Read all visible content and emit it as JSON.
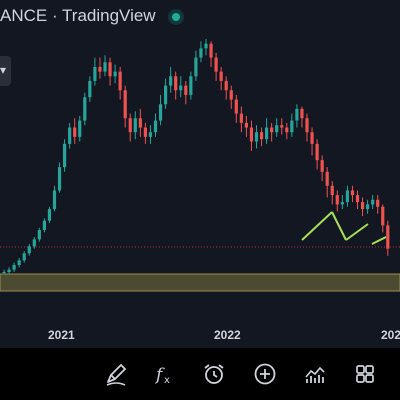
{
  "header": {
    "title": "ANCE · TradingView",
    "side_tab_glyph": "▾"
  },
  "colors": {
    "up": "#26a69a",
    "down": "#ef5350",
    "zone_fill": "#4d4a32",
    "zone_border": "#9a8f52",
    "trendline": "#a6e05a",
    "level_line": "#f23645",
    "background": "#131722"
  },
  "x_axis": {
    "ticks": [
      "2021",
      "2022",
      "202"
    ]
  },
  "toolbar": {
    "items": [
      {
        "name": "draw-icon"
      },
      {
        "name": "indicators-fx-icon"
      },
      {
        "name": "alert-clock-icon"
      },
      {
        "name": "add-icon"
      },
      {
        "name": "chart-style-icon"
      },
      {
        "name": "layout-grid-icon"
      }
    ]
  },
  "chart_data": {
    "type": "candlestick",
    "title": "",
    "xlabel": "",
    "ylabel": "",
    "grid": false,
    "candles": [
      [
        0.0,
        0.0,
        0.01,
        -0.01
      ],
      [
        0.0,
        0.01,
        0.02,
        -0.01
      ],
      [
        0.01,
        0.03,
        0.04,
        0.0
      ],
      [
        0.03,
        0.05,
        0.06,
        0.02
      ],
      [
        0.05,
        0.08,
        0.09,
        0.04
      ],
      [
        0.08,
        0.11,
        0.12,
        0.07
      ],
      [
        0.11,
        0.14,
        0.15,
        0.1
      ],
      [
        0.14,
        0.18,
        0.19,
        0.13
      ],
      [
        0.18,
        0.22,
        0.23,
        0.17
      ],
      [
        0.22,
        0.27,
        0.28,
        0.21
      ],
      [
        0.27,
        0.35,
        0.37,
        0.26
      ],
      [
        0.35,
        0.45,
        0.47,
        0.34
      ],
      [
        0.45,
        0.55,
        0.57,
        0.43
      ],
      [
        0.55,
        0.62,
        0.64,
        0.53
      ],
      [
        0.62,
        0.58,
        0.66,
        0.55
      ],
      [
        0.58,
        0.65,
        0.67,
        0.56
      ],
      [
        0.65,
        0.75,
        0.77,
        0.63
      ],
      [
        0.75,
        0.82,
        0.84,
        0.73
      ],
      [
        0.82,
        0.88,
        0.92,
        0.8
      ],
      [
        0.88,
        0.86,
        0.92,
        0.83
      ],
      [
        0.86,
        0.9,
        0.93,
        0.84
      ],
      [
        0.9,
        0.84,
        0.92,
        0.8
      ],
      [
        0.84,
        0.86,
        0.89,
        0.81
      ],
      [
        0.86,
        0.78,
        0.88,
        0.74
      ],
      [
        0.78,
        0.66,
        0.8,
        0.62
      ],
      [
        0.66,
        0.6,
        0.68,
        0.56
      ],
      [
        0.6,
        0.66,
        0.69,
        0.57
      ],
      [
        0.66,
        0.62,
        0.7,
        0.58
      ],
      [
        0.62,
        0.58,
        0.64,
        0.55
      ],
      [
        0.58,
        0.6,
        0.63,
        0.55
      ],
      [
        0.6,
        0.65,
        0.68,
        0.58
      ],
      [
        0.65,
        0.72,
        0.76,
        0.63
      ],
      [
        0.72,
        0.8,
        0.83,
        0.7
      ],
      [
        0.8,
        0.84,
        0.88,
        0.77
      ],
      [
        0.84,
        0.78,
        0.86,
        0.74
      ],
      [
        0.78,
        0.8,
        0.84,
        0.75
      ],
      [
        0.8,
        0.76,
        0.82,
        0.72
      ],
      [
        0.76,
        0.84,
        0.86,
        0.74
      ],
      [
        0.84,
        0.92,
        0.95,
        0.82
      ],
      [
        0.92,
        0.96,
        0.99,
        0.9
      ],
      [
        0.96,
        0.98,
        1.0,
        0.93
      ],
      [
        0.98,
        0.92,
        0.99,
        0.88
      ],
      [
        0.92,
        0.86,
        0.94,
        0.82
      ],
      [
        0.86,
        0.82,
        0.88,
        0.78
      ],
      [
        0.82,
        0.78,
        0.84,
        0.74
      ],
      [
        0.78,
        0.74,
        0.8,
        0.7
      ],
      [
        0.74,
        0.68,
        0.76,
        0.64
      ],
      [
        0.68,
        0.64,
        0.71,
        0.6
      ],
      [
        0.64,
        0.62,
        0.67,
        0.58
      ],
      [
        0.62,
        0.56,
        0.65,
        0.52
      ],
      [
        0.56,
        0.6,
        0.63,
        0.53
      ],
      [
        0.6,
        0.57,
        0.62,
        0.54
      ],
      [
        0.57,
        0.62,
        0.66,
        0.55
      ],
      [
        0.62,
        0.6,
        0.64,
        0.56
      ],
      [
        0.6,
        0.63,
        0.66,
        0.58
      ],
      [
        0.63,
        0.62,
        0.66,
        0.59
      ],
      [
        0.62,
        0.6,
        0.64,
        0.57
      ],
      [
        0.6,
        0.65,
        0.68,
        0.58
      ],
      [
        0.65,
        0.7,
        0.72,
        0.62
      ],
      [
        0.7,
        0.66,
        0.71,
        0.62
      ],
      [
        0.66,
        0.6,
        0.68,
        0.56
      ],
      [
        0.6,
        0.55,
        0.62,
        0.5
      ],
      [
        0.55,
        0.48,
        0.57,
        0.44
      ],
      [
        0.48,
        0.43,
        0.5,
        0.39
      ],
      [
        0.43,
        0.37,
        0.45,
        0.32
      ],
      [
        0.37,
        0.33,
        0.39,
        0.29
      ],
      [
        0.33,
        0.29,
        0.35,
        0.26
      ],
      [
        0.29,
        0.3,
        0.33,
        0.27
      ],
      [
        0.3,
        0.35,
        0.37,
        0.28
      ],
      [
        0.35,
        0.33,
        0.37,
        0.3
      ],
      [
        0.33,
        0.3,
        0.35,
        0.27
      ],
      [
        0.3,
        0.27,
        0.32,
        0.24
      ],
      [
        0.27,
        0.29,
        0.31,
        0.25
      ],
      [
        0.29,
        0.31,
        0.33,
        0.27
      ],
      [
        0.31,
        0.28,
        0.33,
        0.25
      ],
      [
        0.28,
        0.2,
        0.29,
        0.17
      ],
      [
        0.2,
        0.1,
        0.22,
        0.07
      ]
    ],
    "candle_fields": [
      "open",
      "close",
      "high",
      "low"
    ]
  }
}
